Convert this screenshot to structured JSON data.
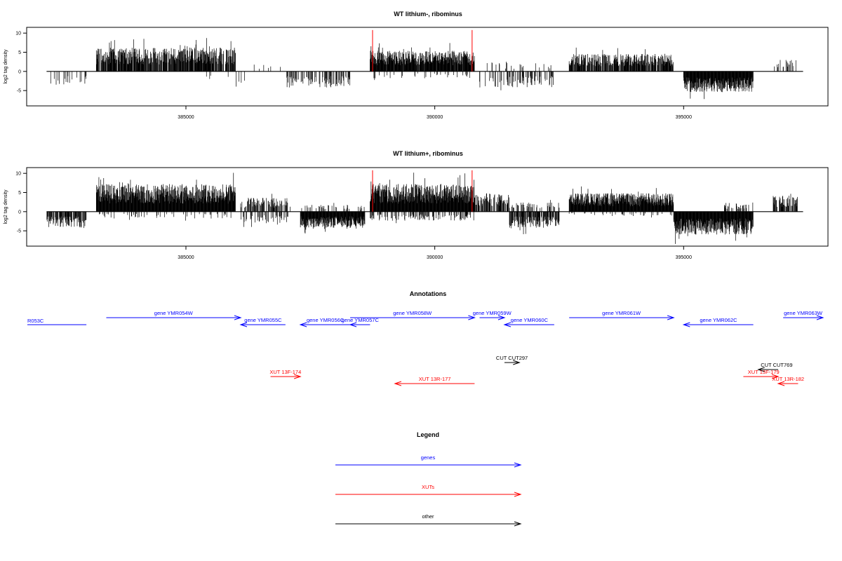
{
  "chart_data": [
    {
      "type": "bar",
      "title": "WT lithium-, ribominus",
      "ylabel": "log2 tag density",
      "xlabel": "",
      "xlim": [
        381800,
        397900
      ],
      "ylim": [
        -9,
        11.5
      ],
      "xticks": [
        385000,
        390000,
        395000
      ],
      "yticks": [
        -5,
        0,
        5,
        10
      ],
      "regions": [
        {
          "from": 383200,
          "to": 386000,
          "sign": 1,
          "amp": 5.2,
          "density": 0.85
        },
        {
          "from": 382200,
          "to": 383000,
          "sign": -1,
          "amp": 3,
          "density": 0.15
        },
        {
          "from": 385400,
          "to": 386200,
          "sign": -1,
          "amp": 3,
          "density": 0.05
        },
        {
          "from": 386300,
          "to": 387200,
          "sign": 1,
          "amp": 1.5,
          "density": 0.05
        },
        {
          "from": 387000,
          "to": 388300,
          "sign": -1,
          "amp": 3.5,
          "density": 0.4
        },
        {
          "from": 388700,
          "to": 390800,
          "sign": 1,
          "amp": 4.5,
          "density": 0.95
        },
        {
          "from": 388700,
          "to": 390800,
          "sign": -1,
          "amp": 1.5,
          "density": 0.1
        },
        {
          "from": 391000,
          "to": 392400,
          "sign": 1,
          "amp": 2,
          "density": 0.1
        },
        {
          "from": 390900,
          "to": 392400,
          "sign": -1,
          "amp": 3.5,
          "density": 0.3
        },
        {
          "from": 392700,
          "to": 394800,
          "sign": 1,
          "amp": 3.8,
          "density": 0.8
        },
        {
          "from": 395000,
          "to": 396400,
          "sign": -1,
          "amp": 4.5,
          "density": 1.0
        },
        {
          "from": 396800,
          "to": 397300,
          "sign": 1,
          "amp": 2.5,
          "density": 0.2
        }
      ],
      "markers": [
        388750,
        390750
      ]
    },
    {
      "type": "bar",
      "title": "WT lithium+, ribominus",
      "ylabel": "log2 tag density",
      "xlabel": "",
      "xlim": [
        381800,
        397900
      ],
      "ylim": [
        -9,
        11.5
      ],
      "xticks": [
        385000,
        390000,
        395000
      ],
      "yticks": [
        -5,
        0,
        5,
        10
      ],
      "regions": [
        {
          "from": 382200,
          "to": 383000,
          "sign": -1,
          "amp": 3.5,
          "density": 0.7
        },
        {
          "from": 383200,
          "to": 386000,
          "sign": 1,
          "amp": 6,
          "density": 1.0
        },
        {
          "from": 383200,
          "to": 386000,
          "sign": -1,
          "amp": 1.5,
          "density": 0.1
        },
        {
          "from": 386100,
          "to": 387100,
          "sign": 1,
          "amp": 3,
          "density": 0.5
        },
        {
          "from": 386100,
          "to": 387100,
          "sign": -1,
          "amp": 2.5,
          "density": 0.3
        },
        {
          "from": 387300,
          "to": 388600,
          "sign": -1,
          "amp": 3.5,
          "density": 1.0
        },
        {
          "from": 387300,
          "to": 388600,
          "sign": 1,
          "amp": 1.5,
          "density": 0.2
        },
        {
          "from": 388700,
          "to": 390800,
          "sign": 1,
          "amp": 6,
          "density": 1.0
        },
        {
          "from": 388700,
          "to": 390800,
          "sign": -1,
          "amp": 2,
          "density": 0.3
        },
        {
          "from": 390800,
          "to": 391500,
          "sign": 1,
          "amp": 4,
          "density": 0.6
        },
        {
          "from": 391500,
          "to": 392500,
          "sign": -1,
          "amp": 3.5,
          "density": 0.7
        },
        {
          "from": 391500,
          "to": 392500,
          "sign": 1,
          "amp": 2,
          "density": 0.3
        },
        {
          "from": 392700,
          "to": 394800,
          "sign": 1,
          "amp": 4,
          "density": 1.0
        },
        {
          "from": 392700,
          "to": 394800,
          "sign": -1,
          "amp": 1,
          "density": 0.1
        },
        {
          "from": 394800,
          "to": 396400,
          "sign": -1,
          "amp": 5,
          "density": 1.0
        },
        {
          "from": 395800,
          "to": 396400,
          "sign": 1,
          "amp": 2,
          "density": 0.3
        },
        {
          "from": 396800,
          "to": 397300,
          "sign": 1,
          "amp": 3.5,
          "density": 0.7
        }
      ],
      "markers": [
        388750,
        390750
      ]
    }
  ],
  "annotations": {
    "title": "Annotations",
    "genes": [
      {
        "label": "R053C",
        "from": 381800,
        "to": 383000,
        "strand": "-"
      },
      {
        "label": "gene YMR054W",
        "from": 383400,
        "to": 386100,
        "strand": "+"
      },
      {
        "label": "gene YMR055C",
        "from": 386100,
        "to": 387000,
        "strand": "-"
      },
      {
        "label": "gene YMR056C",
        "from": 387300,
        "to": 388300,
        "strand": "-"
      },
      {
        "label": "gene YMR057C",
        "from": 388300,
        "to": 388700,
        "strand": "-"
      },
      {
        "label": "gene YMR058W",
        "from": 388300,
        "to": 390800,
        "strand": "+"
      },
      {
        "label": "gene YMR059W",
        "from": 390900,
        "to": 391400,
        "strand": "+"
      },
      {
        "label": "gene YMR060C",
        "from": 391400,
        "to": 392400,
        "strand": "-"
      },
      {
        "label": "gene YMR061W",
        "from": 392700,
        "to": 394800,
        "strand": "+"
      },
      {
        "label": "gene YMR062C",
        "from": 395000,
        "to": 396400,
        "strand": "-"
      },
      {
        "label": "gene YMR063W",
        "from": 397000,
        "to": 397800,
        "strand": "+"
      }
    ],
    "cuts": [
      {
        "label": "CUT CUT297",
        "from": 391400,
        "to": 391700,
        "strand": "+"
      },
      {
        "label": "CUT CUT769",
        "from": 396500,
        "to": 396900,
        "strand": "-"
      }
    ],
    "xuts": [
      {
        "label": "XUT 13F-174",
        "from": 386700,
        "to": 387300,
        "strand": "+"
      },
      {
        "label": "XUT 13R-177",
        "from": 389200,
        "to": 390800,
        "strand": "-"
      },
      {
        "label": "XUT 13F-179",
        "from": 396200,
        "to": 396900,
        "strand": "+"
      },
      {
        "label": "XUT 13R-182",
        "from": 396900,
        "to": 397300,
        "strand": "-"
      }
    ]
  },
  "legend": {
    "title": "Legend",
    "items": [
      {
        "label": "genes",
        "color": "#0000ff"
      },
      {
        "label": "XUTs",
        "color": "#ff0000"
      },
      {
        "label": "other",
        "color": "#000000"
      }
    ]
  },
  "colors": {
    "gene": "#0000ff",
    "xut": "#ff0000",
    "other": "#000000",
    "marker": "#ff0000"
  }
}
